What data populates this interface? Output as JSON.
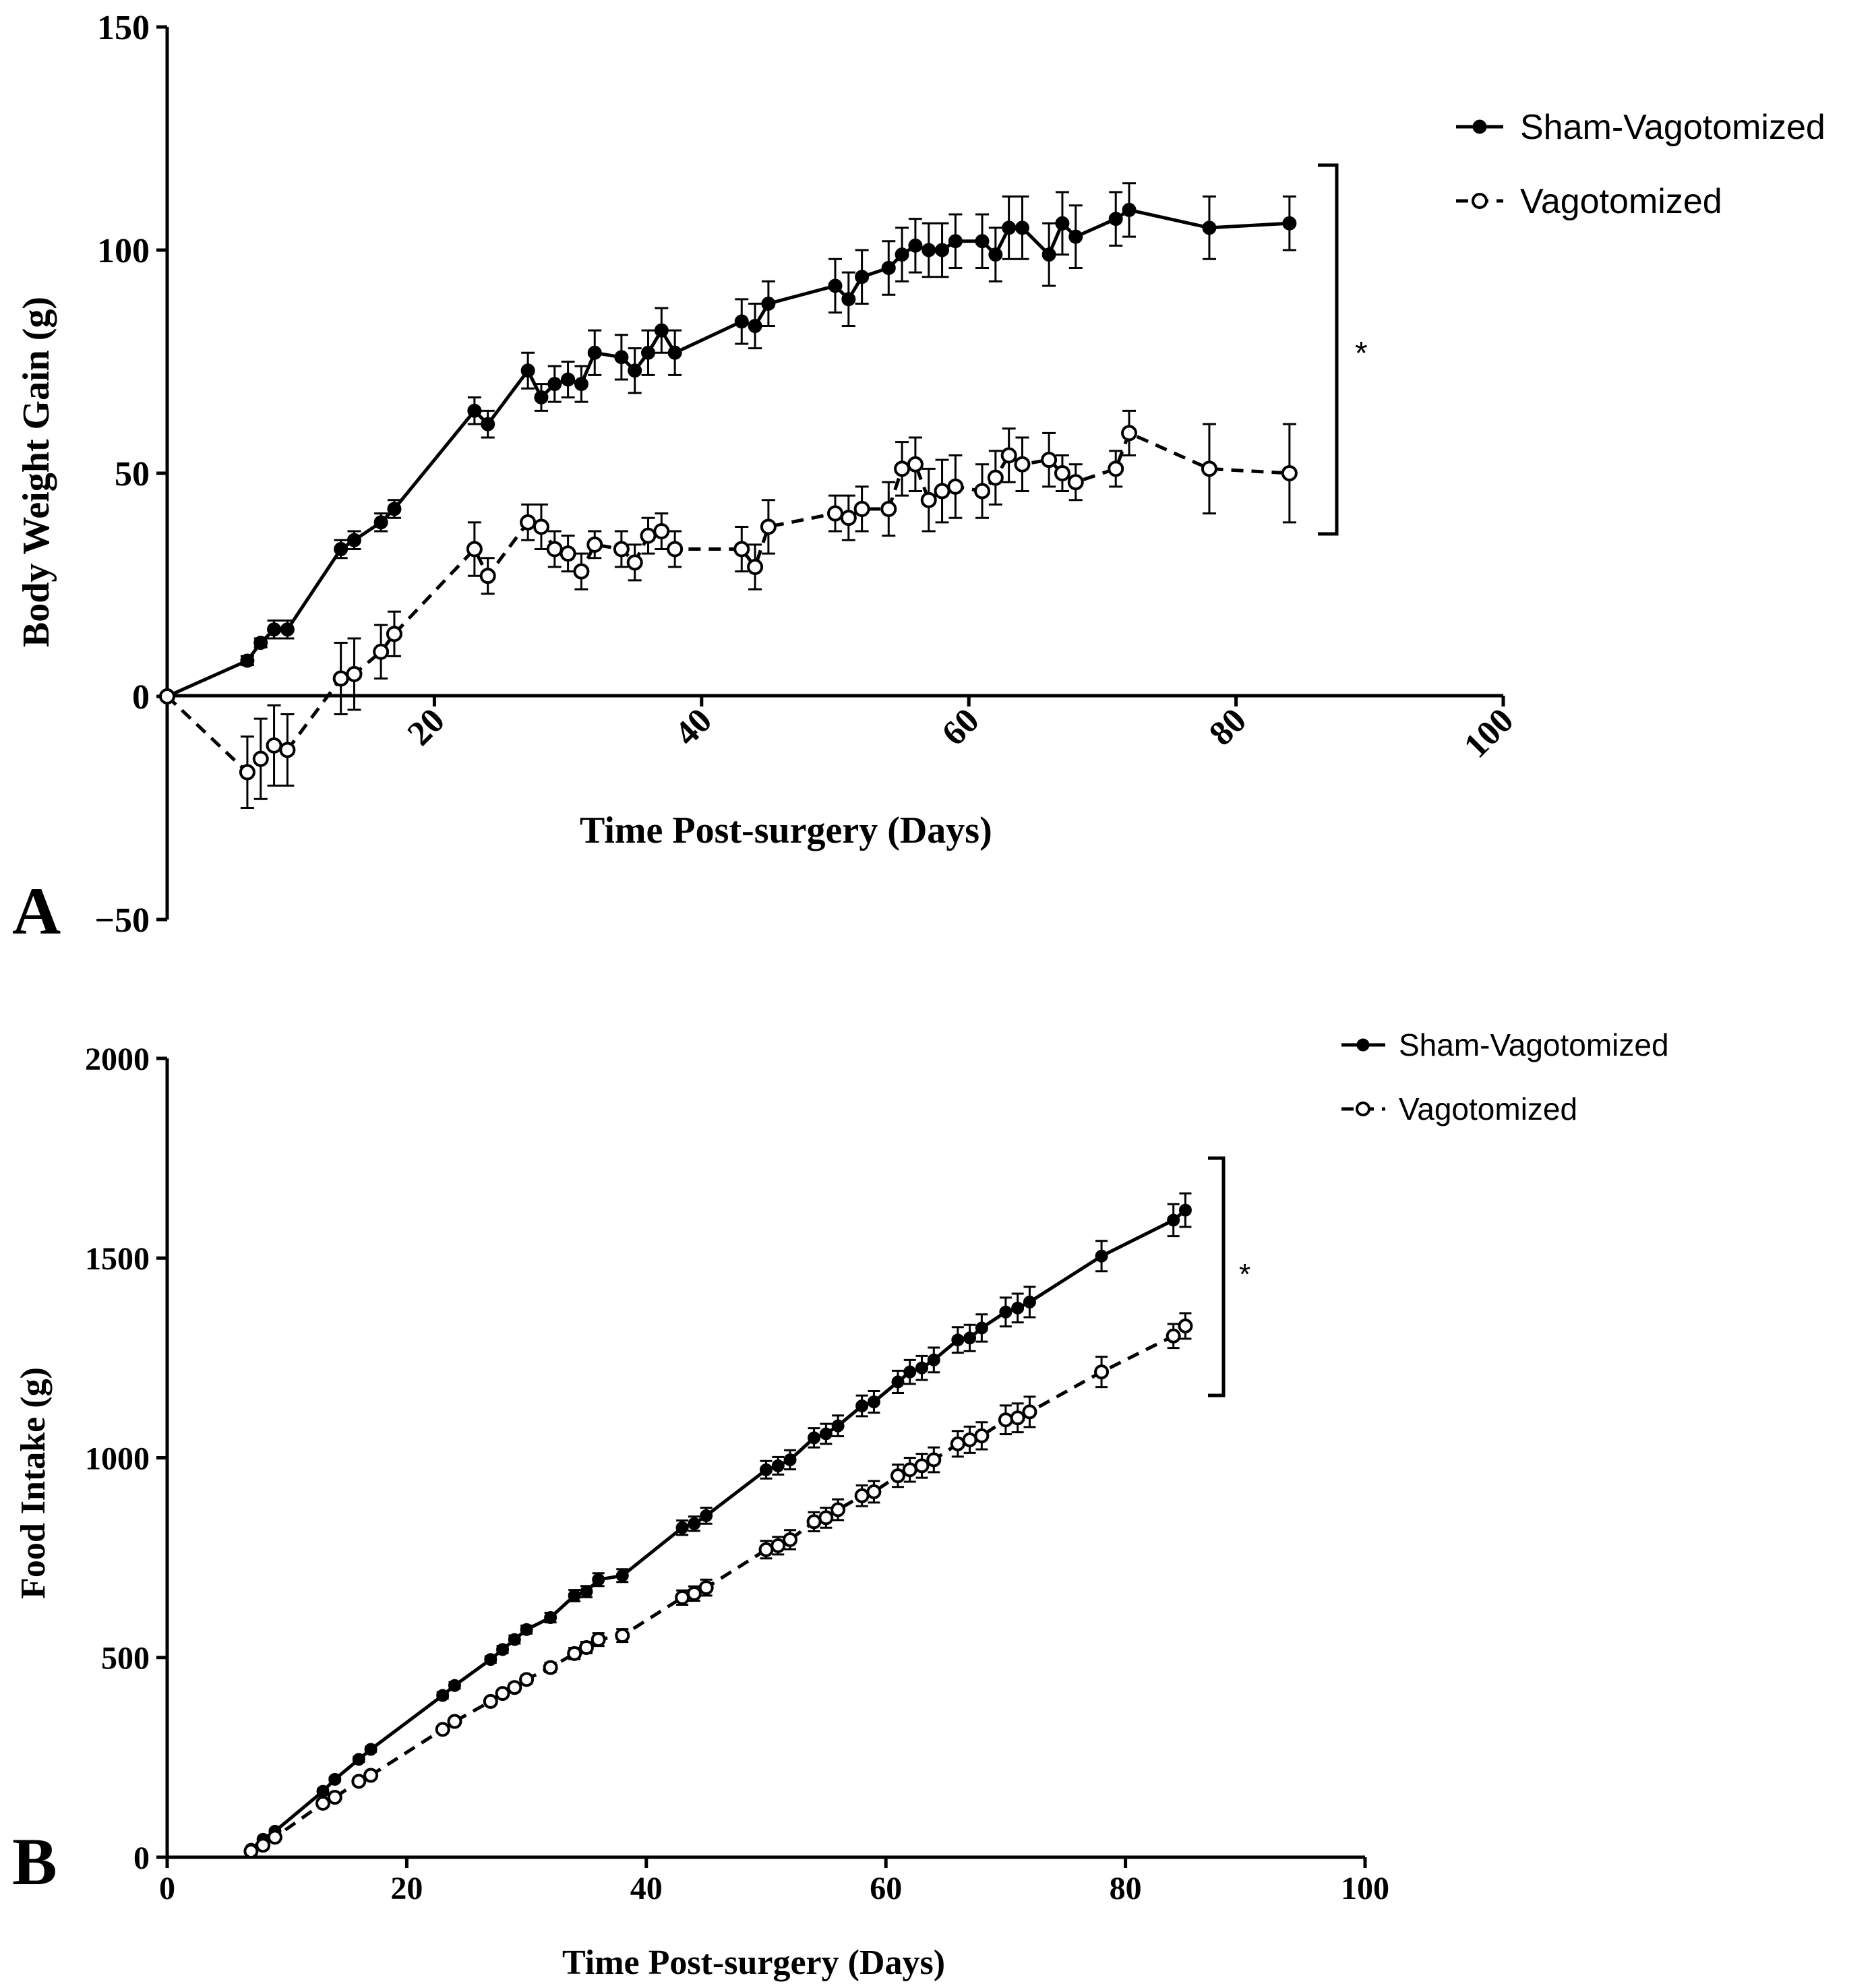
{
  "chart_data": [
    {
      "type": "line",
      "panel_label": "A",
      "xlabel": "Time Post-surgery (Days)",
      "ylabel": "Body Weight Gain (g)",
      "xlim": [
        0,
        100
      ],
      "ylim": [
        -50,
        150
      ],
      "xticks": [
        "20",
        "40",
        "60",
        "80",
        "100"
      ],
      "xtick_values": [
        20,
        40,
        60,
        80,
        100
      ],
      "yticks": [
        "−50",
        "0",
        "50",
        "100",
        "150"
      ],
      "ytick_values": [
        -50,
        0,
        50,
        100,
        150
      ],
      "legend": [
        "Sham-Vagotomized",
        "Vagotomized"
      ],
      "significance": "*",
      "series": [
        {
          "name": "Sham-Vagotomized",
          "style": "solid-filled",
          "x": [
            0,
            6,
            7,
            8,
            9,
            13,
            14,
            16,
            17,
            23,
            24,
            27,
            28,
            29,
            30,
            31,
            32,
            34,
            35,
            36,
            37,
            38,
            43,
            44,
            45,
            50,
            51,
            52,
            54,
            55,
            56,
            57,
            58,
            59,
            61,
            62,
            63,
            64,
            66,
            67,
            68,
            71,
            72,
            78,
            84
          ],
          "values": [
            0,
            8,
            12,
            15,
            15,
            33,
            35,
            39,
            42,
            64,
            61,
            73,
            67,
            70,
            71,
            70,
            77,
            76,
            73,
            77,
            82,
            77,
            84,
            83,
            88,
            92,
            89,
            94,
            96,
            99,
            101,
            100,
            100,
            102,
            102,
            99,
            105,
            105,
            99,
            106,
            103,
            107,
            109,
            105,
            106
          ],
          "errors": [
            0,
            1,
            1,
            2,
            2,
            2,
            2,
            2,
            2,
            3,
            3,
            4,
            3,
            4,
            4,
            4,
            5,
            5,
            5,
            5,
            5,
            5,
            5,
            5,
            5,
            6,
            6,
            6,
            6,
            6,
            6,
            6,
            6,
            6,
            6,
            6,
            7,
            7,
            7,
            7,
            7,
            6,
            6,
            7,
            6
          ]
        },
        {
          "name": "Vagotomized",
          "style": "dashed-open",
          "x": [
            0,
            6,
            7,
            8,
            9,
            13,
            14,
            16,
            17,
            23,
            24,
            27,
            28,
            29,
            30,
            31,
            32,
            34,
            35,
            36,
            37,
            38,
            43,
            44,
            45,
            50,
            51,
            52,
            54,
            55,
            56,
            57,
            58,
            59,
            61,
            62,
            63,
            64,
            66,
            67,
            68,
            71,
            72,
            78,
            84
          ],
          "values": [
            0,
            -17,
            -14,
            -11,
            -12,
            4,
            5,
            10,
            14,
            33,
            27,
            39,
            38,
            33,
            32,
            28,
            34,
            33,
            30,
            36,
            37,
            33,
            33,
            29,
            38,
            41,
            40,
            42,
            42,
            51,
            52,
            44,
            46,
            47,
            46,
            49,
            54,
            52,
            53,
            50,
            48,
            51,
            59,
            51,
            50
          ],
          "errors": [
            0,
            8,
            9,
            9,
            8,
            8,
            8,
            6,
            5,
            6,
            4,
            4,
            5,
            4,
            4,
            4,
            3,
            4,
            4,
            4,
            4,
            4,
            5,
            5,
            6,
            4,
            5,
            5,
            6,
            6,
            6,
            7,
            7,
            7,
            6,
            6,
            6,
            6,
            6,
            4,
            4,
            4,
            5,
            10,
            11
          ]
        }
      ]
    },
    {
      "type": "line",
      "panel_label": "B",
      "xlabel": "Time Post-surgery (Days)",
      "ylabel": "Food Intake (g)",
      "xlim": [
        0,
        100
      ],
      "ylim": [
        0,
        2000
      ],
      "xticks": [
        "0",
        "20",
        "40",
        "60",
        "80",
        "100"
      ],
      "xtick_values": [
        0,
        20,
        40,
        60,
        80,
        100
      ],
      "yticks": [
        "0",
        "500",
        "1000",
        "1500",
        "2000"
      ],
      "ytick_values": [
        0,
        500,
        1000,
        1500,
        2000
      ],
      "legend": [
        "Sham-Vagotomized",
        "Vagotomized"
      ],
      "significance": "*",
      "series": [
        {
          "name": "Sham-Vagotomized",
          "style": "solid-filled",
          "x": [
            7,
            8,
            9,
            13,
            14,
            16,
            17,
            23,
            24,
            27,
            28,
            29,
            30,
            32,
            34,
            35,
            36,
            38,
            43,
            44,
            45,
            50,
            51,
            52,
            54,
            55,
            56,
            58,
            59,
            61,
            62,
            63,
            64,
            66,
            67,
            68,
            70,
            71,
            72,
            78,
            84,
            85
          ],
          "values": [
            20,
            45,
            65,
            165,
            195,
            245,
            270,
            405,
            430,
            495,
            520,
            545,
            570,
            600,
            655,
            665,
            695,
            705,
            825,
            835,
            855,
            970,
            980,
            995,
            1050,
            1060,
            1080,
            1130,
            1140,
            1190,
            1215,
            1225,
            1245,
            1295,
            1300,
            1325,
            1365,
            1375,
            1390,
            1505,
            1595,
            1620
          ],
          "errors": [
            2,
            3,
            4,
            5,
            5,
            6,
            6,
            8,
            8,
            8,
            9,
            10,
            10,
            12,
            14,
            14,
            16,
            16,
            18,
            18,
            20,
            22,
            22,
            24,
            24,
            25,
            26,
            26,
            27,
            28,
            30,
            30,
            31,
            32,
            33,
            34,
            36,
            36,
            38,
            38,
            40,
            42
          ]
        },
        {
          "name": "Vagotomized",
          "style": "dashed-open",
          "x": [
            7,
            8,
            9,
            13,
            14,
            16,
            17,
            23,
            24,
            27,
            28,
            29,
            30,
            32,
            34,
            35,
            36,
            38,
            43,
            44,
            45,
            50,
            51,
            52,
            54,
            55,
            56,
            58,
            59,
            61,
            62,
            63,
            64,
            66,
            67,
            68,
            70,
            71,
            72,
            78,
            84,
            85
          ],
          "values": [
            15,
            30,
            50,
            135,
            150,
            190,
            205,
            320,
            340,
            390,
            410,
            425,
            445,
            475,
            510,
            525,
            545,
            555,
            650,
            660,
            675,
            770,
            780,
            795,
            840,
            850,
            870,
            905,
            915,
            955,
            970,
            980,
            995,
            1035,
            1045,
            1055,
            1095,
            1100,
            1115,
            1215,
            1305,
            1330
          ],
          "errors": [
            2,
            3,
            4,
            5,
            5,
            6,
            6,
            8,
            8,
            8,
            9,
            10,
            10,
            12,
            14,
            14,
            16,
            16,
            18,
            18,
            20,
            22,
            22,
            24,
            24,
            25,
            26,
            26,
            27,
            28,
            30,
            30,
            31,
            32,
            33,
            34,
            36,
            36,
            38,
            38,
            30,
            32
          ]
        }
      ]
    }
  ]
}
